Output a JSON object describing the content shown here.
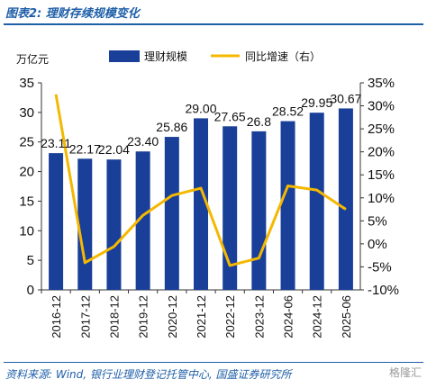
{
  "header": {
    "title": "图表2:  理财存续规模变化"
  },
  "footer": {
    "source": "资料来源: Wind, 银行业理财登记托管中心, 国盛证券研究所",
    "watermark": "格隆汇"
  },
  "chart_data": {
    "type": "bar",
    "title": "",
    "unit_left": "万亿元",
    "categories": [
      "2016-12",
      "2017-12",
      "2018-12",
      "2019-12",
      "2020-12",
      "2021-12",
      "2022-12",
      "2023-12",
      "2024-06",
      "2024-12",
      "2025-06"
    ],
    "series": [
      {
        "name": "理财规模",
        "type": "bar",
        "axis": "left",
        "color": "#1a3f99",
        "values": [
          23.11,
          22.17,
          22.04,
          23.4,
          25.86,
          29.0,
          27.65,
          26.8,
          28.52,
          29.95,
          30.67
        ],
        "labels": [
          "23.11",
          "22.17",
          "22.04",
          "23.40",
          "25.86",
          "29.00",
          "27.65",
          "26.8",
          "28.52",
          "29.95",
          "30.67"
        ]
      },
      {
        "name": "同比增速（右）",
        "type": "line",
        "axis": "right",
        "color": "#f5b800",
        "values": [
          32.5,
          -4.1,
          -0.6,
          6.2,
          10.5,
          12.1,
          -4.7,
          -3.1,
          12.6,
          11.7,
          7.5
        ]
      }
    ],
    "y_left": {
      "min": 0,
      "max": 35,
      "ticks": [
        0,
        5,
        10,
        15,
        20,
        25,
        30,
        35
      ]
    },
    "y_right": {
      "min": -10,
      "max": 35,
      "ticks": [
        "-10%",
        "-5%",
        "0%",
        "5%",
        "10%",
        "15%",
        "20%",
        "25%",
        "30%",
        "35%"
      ]
    },
    "legend_position": "top",
    "grid": false
  }
}
